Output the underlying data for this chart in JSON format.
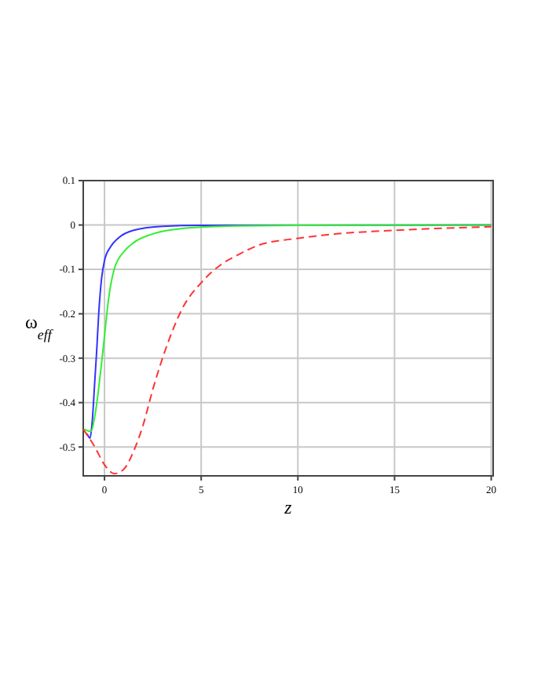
{
  "chart_data": {
    "type": "line",
    "xlabel": "z",
    "ylabel": "ω$_{eff}$",
    "xlim": [
      -1.1,
      20.1
    ],
    "ylim": [
      -0.565,
      0.1
    ],
    "xticks": [
      0,
      5,
      10,
      15,
      20
    ],
    "yticks": [
      0.1,
      0,
      -0.1,
      -0.2,
      -0.3,
      -0.4,
      -0.5
    ],
    "grid": true,
    "series": [
      {
        "color": "#3333ff",
        "line_style": "solid",
        "x": [
          -0.9,
          -0.75,
          -0.65,
          -0.5,
          -0.4,
          -0.3,
          -0.15,
          0,
          0.3,
          0.7,
          1.5,
          3,
          5,
          20
        ],
        "values": [
          -0.47,
          -0.48,
          -0.45,
          -0.35,
          -0.28,
          -0.2,
          -0.12,
          -0.08,
          -0.05,
          -0.03,
          -0.012,
          -0.003,
          -0.001,
          0
        ]
      },
      {
        "color": "#33ee33",
        "line_style": "solid",
        "x": [
          -1.05,
          -0.7,
          -0.5,
          -0.2,
          0,
          0.2,
          0.5,
          1,
          1.5,
          2.5,
          4,
          6,
          10,
          20
        ],
        "values": [
          -0.46,
          -0.465,
          -0.43,
          -0.33,
          -0.25,
          -0.17,
          -0.1,
          -0.06,
          -0.04,
          -0.02,
          -0.008,
          -0.003,
          -0.001,
          0
        ]
      },
      {
        "color": "#ff3333",
        "line_style": "dashed",
        "x": [
          -1.1,
          -0.5,
          0,
          0.5,
          1,
          1.5,
          2,
          2.5,
          3,
          3.5,
          4,
          5,
          6,
          7,
          8,
          10,
          12,
          15,
          20
        ],
        "values": [
          -0.46,
          -0.5,
          -0.54,
          -0.56,
          -0.55,
          -0.51,
          -0.45,
          -0.37,
          -0.3,
          -0.24,
          -0.19,
          -0.13,
          -0.09,
          -0.065,
          -0.045,
          -0.03,
          -0.02,
          -0.012,
          -0.004
        ]
      }
    ]
  }
}
